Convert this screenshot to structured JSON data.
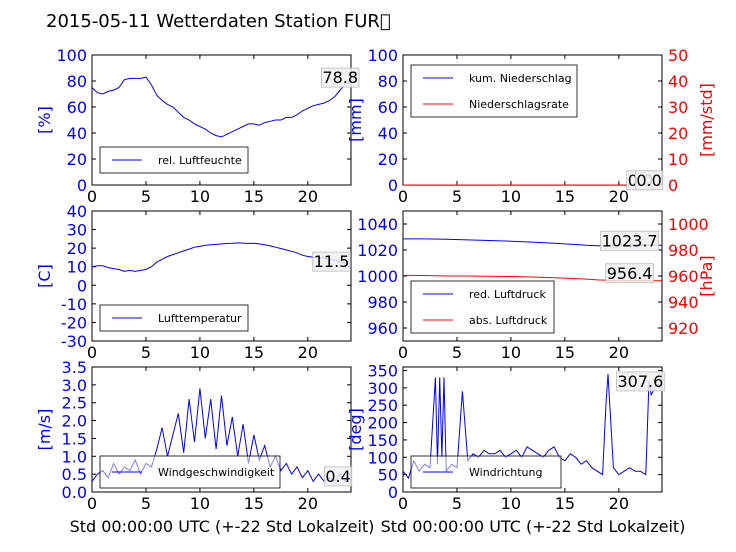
{
  "title": "2015-05-11 Wetterdaten Station FUR\u0000",
  "xlabel": "Std 00:00:00 UTC (+-22 Std Lokalzeit)",
  "colors": {
    "primary": "#0000ff",
    "secondary": "#ff0000",
    "faded": "#8080ff",
    "axes": "#000000"
  },
  "chart_data": [
    {
      "type": "line",
      "xlim": [
        0,
        24
      ],
      "xticks": [
        0,
        5,
        10,
        15,
        20
      ],
      "ylabel": "[%]",
      "ylim": [
        0,
        100
      ],
      "yticks": [
        0,
        20,
        40,
        60,
        80,
        100
      ],
      "legend": {
        "placement": "lower-left"
      },
      "series": [
        {
          "name": "rel. Luftfeuchte",
          "color": "#0000ff",
          "axis": "left",
          "x": [
            0,
            0.5,
            1,
            1.5,
            2,
            2.5,
            3,
            3.5,
            4,
            4.5,
            5,
            5.5,
            6,
            6.5,
            7,
            7.5,
            8,
            8.5,
            9,
            9.5,
            10,
            10.5,
            11,
            11.5,
            12,
            12.5,
            13,
            13.5,
            14,
            14.5,
            15,
            15.5,
            16,
            16.5,
            17,
            17.5,
            18,
            18.5,
            19,
            19.5,
            20,
            20.5,
            21,
            21.5,
            22,
            22.5,
            23,
            23.5,
            24
          ],
          "values": [
            75,
            71,
            70,
            72,
            73,
            75,
            81,
            82,
            82,
            82,
            83,
            77,
            69,
            65,
            62,
            60,
            56,
            52,
            50,
            47,
            45,
            43,
            40,
            38,
            37,
            39,
            41,
            43,
            45,
            47,
            47,
            46,
            48,
            49,
            50,
            50,
            52,
            52,
            54,
            57,
            59,
            61,
            62,
            63,
            65,
            68,
            73,
            78,
            79
          ]
        }
      ],
      "annotations": [
        {
          "text": "78.8",
          "x": 23.0,
          "y": 83
        }
      ]
    },
    {
      "type": "line",
      "xlim": [
        0,
        24
      ],
      "xticks": [
        0,
        5,
        10,
        15,
        20
      ],
      "ylabel": "[mm]",
      "ylim": [
        0,
        100
      ],
      "yticks": [
        0,
        20,
        40,
        60,
        80,
        100
      ],
      "ylabel2": "[mm/std]",
      "ylim2": [
        0,
        50
      ],
      "yticks2": [
        0,
        10,
        20,
        30,
        40,
        50
      ],
      "legend": {
        "placement": "upper-left"
      },
      "series": [
        {
          "name": "kum. Niederschlag",
          "color": "#0000ff",
          "axis": "left",
          "x": [
            0,
            24
          ],
          "values": [
            0,
            0
          ]
        },
        {
          "name": "Niederschlagsrate",
          "color": "#ff0000",
          "axis": "right",
          "x": [
            0,
            24
          ],
          "values": [
            0,
            0
          ]
        }
      ],
      "annotations": [
        {
          "text": "0.0",
          "x": 22.0,
          "y": 4
        },
        {
          "text": "0.0",
          "x": 22.8,
          "y": 4
        }
      ]
    },
    {
      "type": "line",
      "xlim": [
        0,
        24
      ],
      "xticks": [
        0,
        5,
        10,
        15,
        20
      ],
      "ylabel": "[C]",
      "ylim": [
        -30,
        40
      ],
      "yticks": [
        -30,
        -20,
        -10,
        0,
        10,
        20,
        30,
        40
      ],
      "legend": {
        "placement": "lower-left"
      },
      "series": [
        {
          "name": "Lufttemperatur",
          "color": "#0000ff",
          "axis": "left",
          "x": [
            0,
            0.5,
            1,
            1.5,
            2,
            2.5,
            3,
            3.5,
            4,
            4.5,
            5,
            5.5,
            6,
            6.5,
            7,
            7.5,
            8,
            8.5,
            9,
            9.5,
            10,
            10.5,
            11,
            11.5,
            12,
            12.5,
            13,
            13.5,
            14,
            14.5,
            15,
            15.5,
            16,
            16.5,
            17,
            17.5,
            18,
            18.5,
            19,
            19.5,
            20,
            20.5,
            21,
            21.5,
            22,
            22.5,
            23,
            23.5,
            24
          ],
          "values": [
            10,
            10.5,
            10.5,
            9.5,
            9,
            8.5,
            7.5,
            8,
            7.5,
            8,
            8.5,
            10,
            12.5,
            14,
            15.5,
            16.5,
            17.5,
            18.5,
            19.5,
            20.5,
            21,
            21.5,
            21.8,
            22,
            22.3,
            22.5,
            22.6,
            22.8,
            22.7,
            22.5,
            22.6,
            22.3,
            21.8,
            21.2,
            20.5,
            19.8,
            19,
            18.3,
            17.5,
            16.2,
            15.5,
            15.2,
            14.8,
            14.5,
            14,
            13.5,
            12.5,
            11.5,
            11.5
          ]
        }
      ],
      "annotations": [
        {
          "text": "11.5",
          "x": 22.2,
          "y": 13
        }
      ]
    },
    {
      "type": "line",
      "xlim": [
        0,
        24
      ],
      "xticks": [
        0,
        5,
        10,
        15,
        20
      ],
      "ylim": [
        950,
        1050
      ],
      "yticks": [
        960,
        980,
        1000,
        1020,
        1040
      ],
      "ylabel2": "[hPa]",
      "ylim2": [
        910,
        1010
      ],
      "yticks2": [
        920,
        940,
        960,
        980,
        1000
      ],
      "legend": {
        "placement": "lower-left"
      },
      "series": [
        {
          "name": "red. Luftdruck",
          "color": "#0000ff",
          "axis": "left",
          "x": [
            0,
            2,
            4,
            6,
            8,
            10,
            12,
            14,
            16,
            17,
            18,
            19,
            20,
            21,
            22,
            23,
            24
          ],
          "values": [
            1028.5,
            1028.5,
            1028.2,
            1027.8,
            1027.3,
            1026.8,
            1026.1,
            1025.2,
            1024.2,
            1023.6,
            1023.3,
            1023.3,
            1023.6,
            1023.8,
            1023.7,
            1023.7,
            1023.7
          ]
        },
        {
          "name": "abs. Luftdruck",
          "color": "#ff0000",
          "axis": "right",
          "x": [
            0,
            2,
            4,
            6,
            8,
            10,
            12,
            14,
            16,
            17,
            18,
            19,
            20,
            21,
            22,
            23,
            24
          ],
          "values": [
            960.5,
            960.4,
            960.0,
            960.0,
            959.8,
            959.6,
            959.2,
            958.7,
            958.0,
            957.6,
            957.0,
            956.7,
            956.5,
            956.4,
            956.4,
            956.4,
            956.4
          ]
        }
      ],
      "annotations": [
        {
          "text": "1023.7",
          "x": 21.0,
          "y": 1027.5
        },
        {
          "text": "956.4",
          "x": 21.0,
          "y": 1002.5
        }
      ]
    },
    {
      "type": "line",
      "xlim": [
        0,
        24
      ],
      "xticks": [
        0,
        5,
        10,
        15,
        20
      ],
      "ylabel": "[m/s]",
      "ylim": [
        0,
        3.5
      ],
      "yticks": [
        0.0,
        0.5,
        1.0,
        1.5,
        2.0,
        2.5,
        3.0,
        3.5
      ],
      "legend": {
        "placement": "lower-left"
      },
      "series": [
        {
          "name": "Windgeschwindigkeit",
          "color": "#0000ff",
          "axis": "left",
          "x": [
            0,
            0.5,
            1,
            1.5,
            2,
            2.5,
            3,
            3.5,
            4,
            4.5,
            5,
            5.5,
            6,
            6.5,
            7,
            7.5,
            8,
            8.5,
            9,
            9.5,
            10,
            10.5,
            11,
            11.5,
            12,
            12.5,
            13,
            13.5,
            14,
            14.5,
            15,
            15.5,
            16,
            16.5,
            17,
            17.5,
            18,
            18.5,
            19,
            19.5,
            20,
            20.5,
            21,
            21.5,
            22,
            22.5,
            23,
            23.5,
            24
          ],
          "values": [
            0.3,
            0.5,
            0.6,
            0.4,
            0.8,
            0.5,
            0.7,
            0.6,
            0.9,
            0.5,
            0.8,
            0.7,
            1.2,
            1.8,
            1.0,
            1.6,
            2.2,
            1.1,
            2.6,
            1.4,
            2.9,
            1.5,
            2.6,
            1.2,
            2.7,
            1.3,
            2.1,
            1.0,
            1.9,
            0.8,
            1.6,
            0.9,
            1.3,
            0.7,
            1.0,
            0.6,
            0.8,
            0.5,
            0.7,
            0.4,
            0.6,
            0.3,
            0.5,
            0.3,
            0.4,
            0.3,
            0.5,
            0.3,
            0.4
          ]
        }
      ],
      "annotations": [
        {
          "text": "0.4",
          "x": 22.8,
          "y": 0.45
        }
      ]
    },
    {
      "type": "line",
      "xlim": [
        0,
        24
      ],
      "xticks": [
        0,
        5,
        10,
        15,
        20
      ],
      "ylabel": "[deg]",
      "ylim": [
        0,
        360
      ],
      "yticks": [
        0,
        50,
        100,
        150,
        200,
        250,
        300,
        350
      ],
      "legend": {
        "placement": "lower-left"
      },
      "series": [
        {
          "name": "Windrichtung",
          "color": "#0000ff",
          "axis": "left",
          "x": [
            0,
            0.5,
            1,
            1.5,
            2,
            2.5,
            3,
            3.2,
            3.4,
            3.6,
            3.8,
            4,
            4.5,
            5,
            5.5,
            6,
            6.5,
            7,
            7.5,
            8,
            8.5,
            9,
            9.5,
            10,
            10.5,
            11,
            11.5,
            12,
            12.5,
            13,
            13.5,
            14,
            14.5,
            15,
            15.5,
            16,
            16.5,
            17,
            17.5,
            18,
            18.5,
            18.8,
            19,
            19.5,
            20,
            20.5,
            21,
            21.5,
            22,
            22.5,
            22.8,
            23,
            23.5,
            24
          ],
          "values": [
            60,
            40,
            90,
            60,
            80,
            70,
            330,
            80,
            330,
            100,
            330,
            60,
            80,
            70,
            290,
            90,
            110,
            100,
            120,
            110,
            110,
            120,
            100,
            110,
            120,
            100,
            130,
            120,
            110,
            100,
            120,
            130,
            100,
            90,
            110,
            100,
            80,
            90,
            70,
            60,
            50,
            250,
            340,
            70,
            50,
            60,
            70,
            60,
            60,
            50,
            320,
            280,
            310,
            300
          ]
        }
      ],
      "annotations": [
        {
          "text": "307.6",
          "x": 22.0,
          "y": 320
        }
      ]
    }
  ]
}
